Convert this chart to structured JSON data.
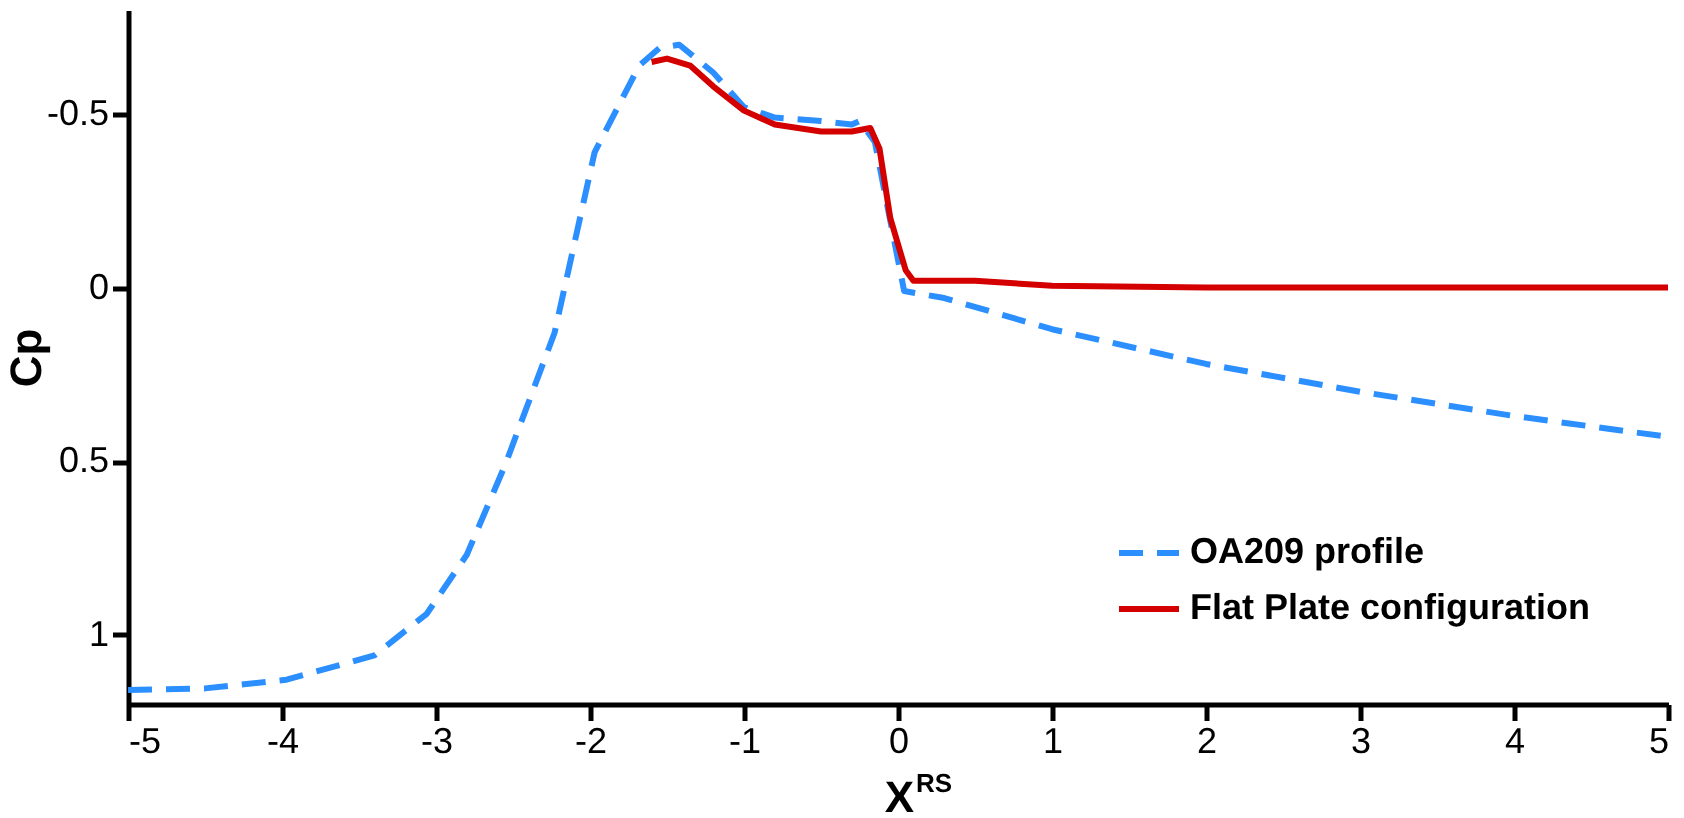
{
  "chart_data": {
    "type": "line",
    "xlabel": "X$^{RS}$",
    "ylabel": "Cp",
    "xlim": [
      -5,
      5
    ],
    "xticks": [
      -5,
      -4,
      -3,
      -2,
      -1,
      0,
      1,
      2,
      3,
      4,
      5
    ],
    "ylim": [
      1.2,
      -0.8
    ],
    "yticks": [
      -0.5,
      0,
      0.5,
      1
    ],
    "grid": false,
    "legend": "bottom right",
    "series": [
      {
        "name": "OA209 profile",
        "color": "#2b8fff",
        "line_style": "dashed",
        "x": [
          -5,
          -4.5,
          -3.97,
          -3.4,
          -3.06,
          -2.8,
          -2.55,
          -2.23,
          -1.97,
          -1.68,
          -1.55,
          -1.42,
          -1.2,
          -1.0,
          -0.8,
          -0.5,
          -0.3,
          -0.25,
          -0.15,
          -0.08,
          0.04,
          0.3,
          1,
          2,
          3,
          4,
          5
        ],
        "values": [
          1.16,
          1.155,
          1.13,
          1.06,
          0.94,
          0.77,
          0.51,
          0.13,
          -0.39,
          -0.64,
          -0.69,
          -0.7,
          -0.62,
          -0.52,
          -0.49,
          -0.48,
          -0.47,
          -0.48,
          -0.42,
          -0.26,
          0.01,
          0.03,
          0.12,
          0.22,
          0.3,
          0.37,
          0.43
        ]
      },
      {
        "name": "Flat Plate configuration",
        "color": "#d40000",
        "line_style": "solid",
        "x": [
          -1.6,
          -1.5,
          -1.35,
          -1.2,
          -1.0,
          -0.8,
          -0.5,
          -0.3,
          -0.18,
          -0.12,
          -0.05,
          0.05,
          0.1,
          0.5,
          1,
          2,
          3,
          4,
          5
        ],
        "values": [
          -0.65,
          -0.66,
          -0.64,
          -0.58,
          -0.51,
          -0.47,
          -0.45,
          -0.45,
          -0.46,
          -0.4,
          -0.2,
          -0.05,
          -0.02,
          -0.02,
          -0.005,
          0,
          0,
          0,
          0
        ]
      }
    ]
  }
}
